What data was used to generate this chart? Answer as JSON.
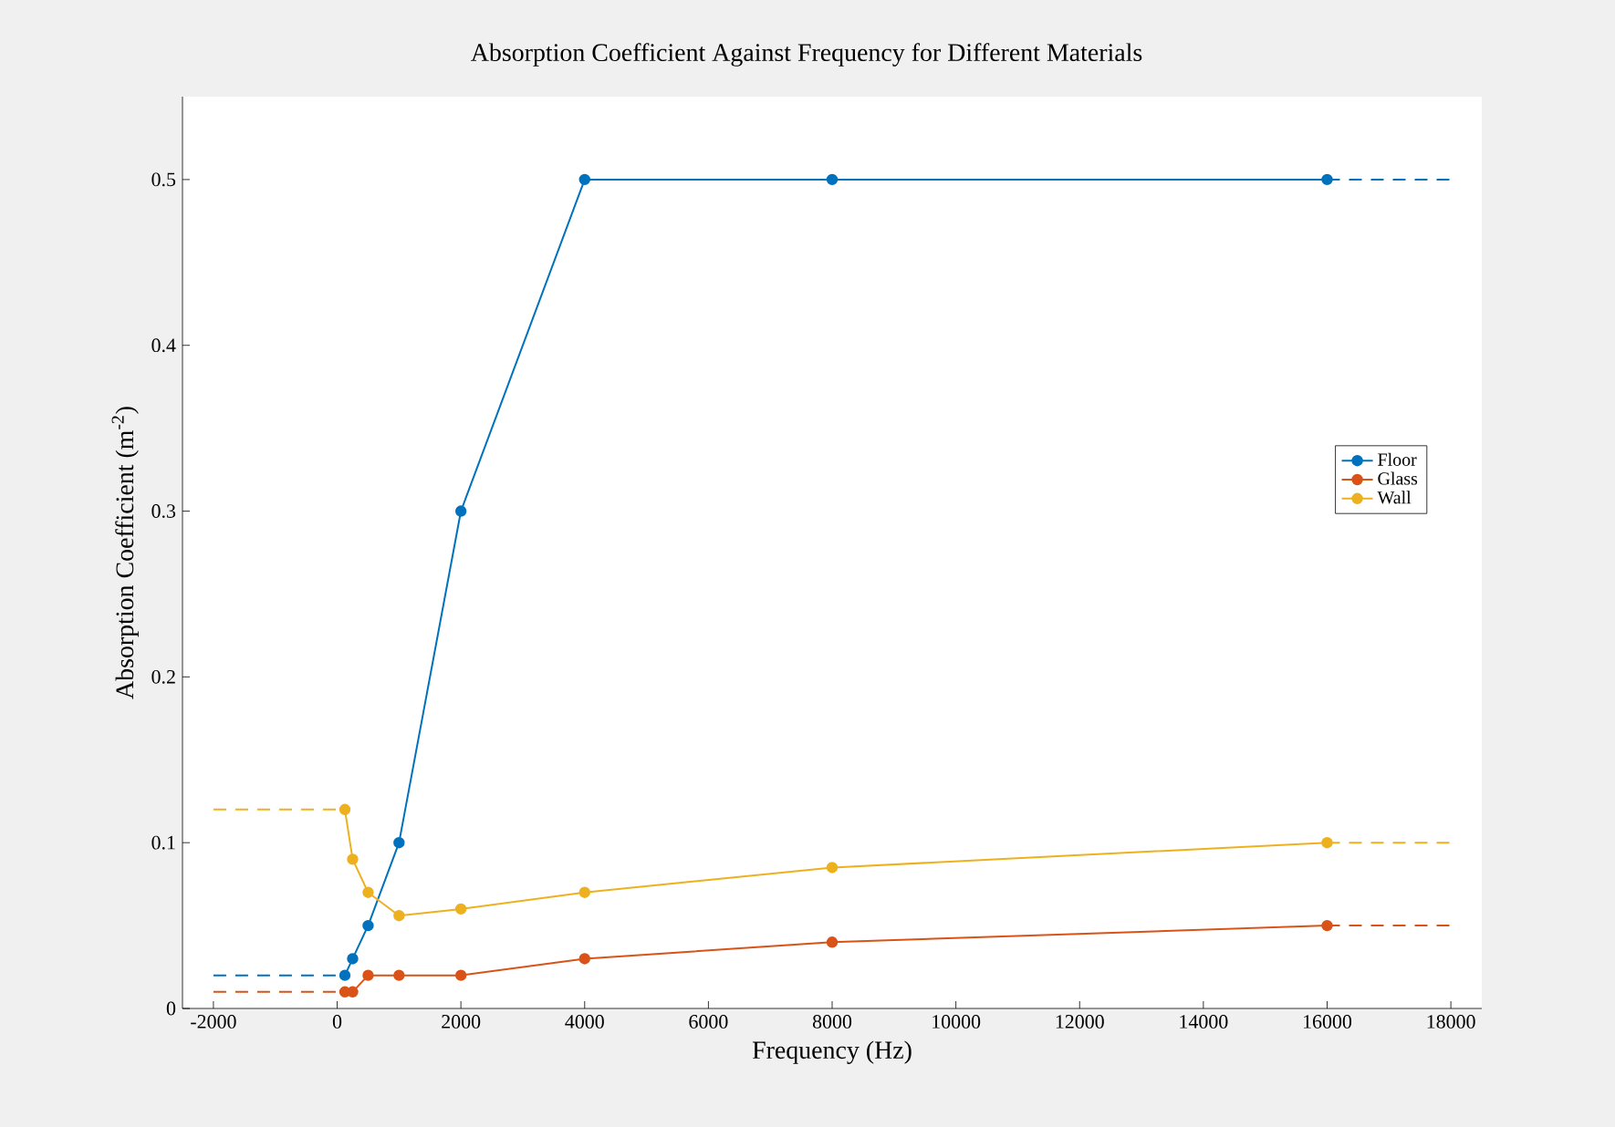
{
  "chart_data": {
    "type": "line",
    "title": "Absorption Coefficient Against Frequency for Different Materials",
    "xlabel": "Frequency (Hz)",
    "ylabel": "Absorption Coefficient (m$^{-2}$)",
    "xlim": [
      -2500,
      18500
    ],
    "ylim": [
      0,
      0.55
    ],
    "xticks": [
      -2000,
      0,
      2000,
      4000,
      6000,
      8000,
      10000,
      12000,
      14000,
      16000,
      18000
    ],
    "yticks": [
      0,
      0.1,
      0.2,
      0.3,
      0.4,
      0.5
    ],
    "legend": "right",
    "grid": false,
    "series": [
      {
        "name": "Floor",
        "color": "#0072bd",
        "marker": "circle",
        "line_style": "solid",
        "x": [
          125,
          250,
          500,
          1000,
          2000,
          4000,
          8000,
          16000
        ],
        "values": [
          0.02,
          0.03,
          0.05,
          0.1,
          0.3,
          0.5,
          0.5,
          0.5
        ]
      },
      {
        "name": "Glass",
        "color": "#d95319",
        "marker": "circle",
        "line_style": "solid",
        "x": [
          125,
          250,
          500,
          1000,
          2000,
          4000,
          8000,
          16000
        ],
        "values": [
          0.01,
          0.01,
          0.02,
          0.02,
          0.02,
          0.03,
          0.04,
          0.05
        ]
      },
      {
        "name": "Wall",
        "color": "#edb120",
        "marker": "circle",
        "line_style": "solid",
        "x": [
          125,
          250,
          500,
          1000,
          2000,
          4000,
          8000,
          16000
        ],
        "values": [
          0.12,
          0.09,
          0.07,
          0.056,
          0.06,
          0.07,
          0.085,
          0.1
        ]
      },
      {
        "color": "#0072bd",
        "marker": "none",
        "line_style": "dashed",
        "x": [
          -2000,
          125
        ],
        "values": [
          0.02,
          0.02
        ]
      },
      {
        "color": "#0072bd",
        "marker": "none",
        "line_style": "dashed",
        "x": [
          16000,
          18000
        ],
        "values": [
          0.5,
          0.5
        ]
      },
      {
        "color": "#d95319",
        "marker": "none",
        "line_style": "dashed",
        "x": [
          -2000,
          125
        ],
        "values": [
          0.01,
          0.01
        ]
      },
      {
        "color": "#d95319",
        "marker": "none",
        "line_style": "dashed",
        "x": [
          16000,
          18000
        ],
        "values": [
          0.05,
          0.05
        ]
      },
      {
        "color": "#edb120",
        "marker": "none",
        "line_style": "dashed",
        "x": [
          -2000,
          125
        ],
        "values": [
          0.12,
          0.12
        ]
      },
      {
        "color": "#edb120",
        "marker": "none",
        "line_style": "dashed",
        "x": [
          16000,
          18000
        ],
        "values": [
          0.1,
          0.1
        ]
      }
    ]
  }
}
